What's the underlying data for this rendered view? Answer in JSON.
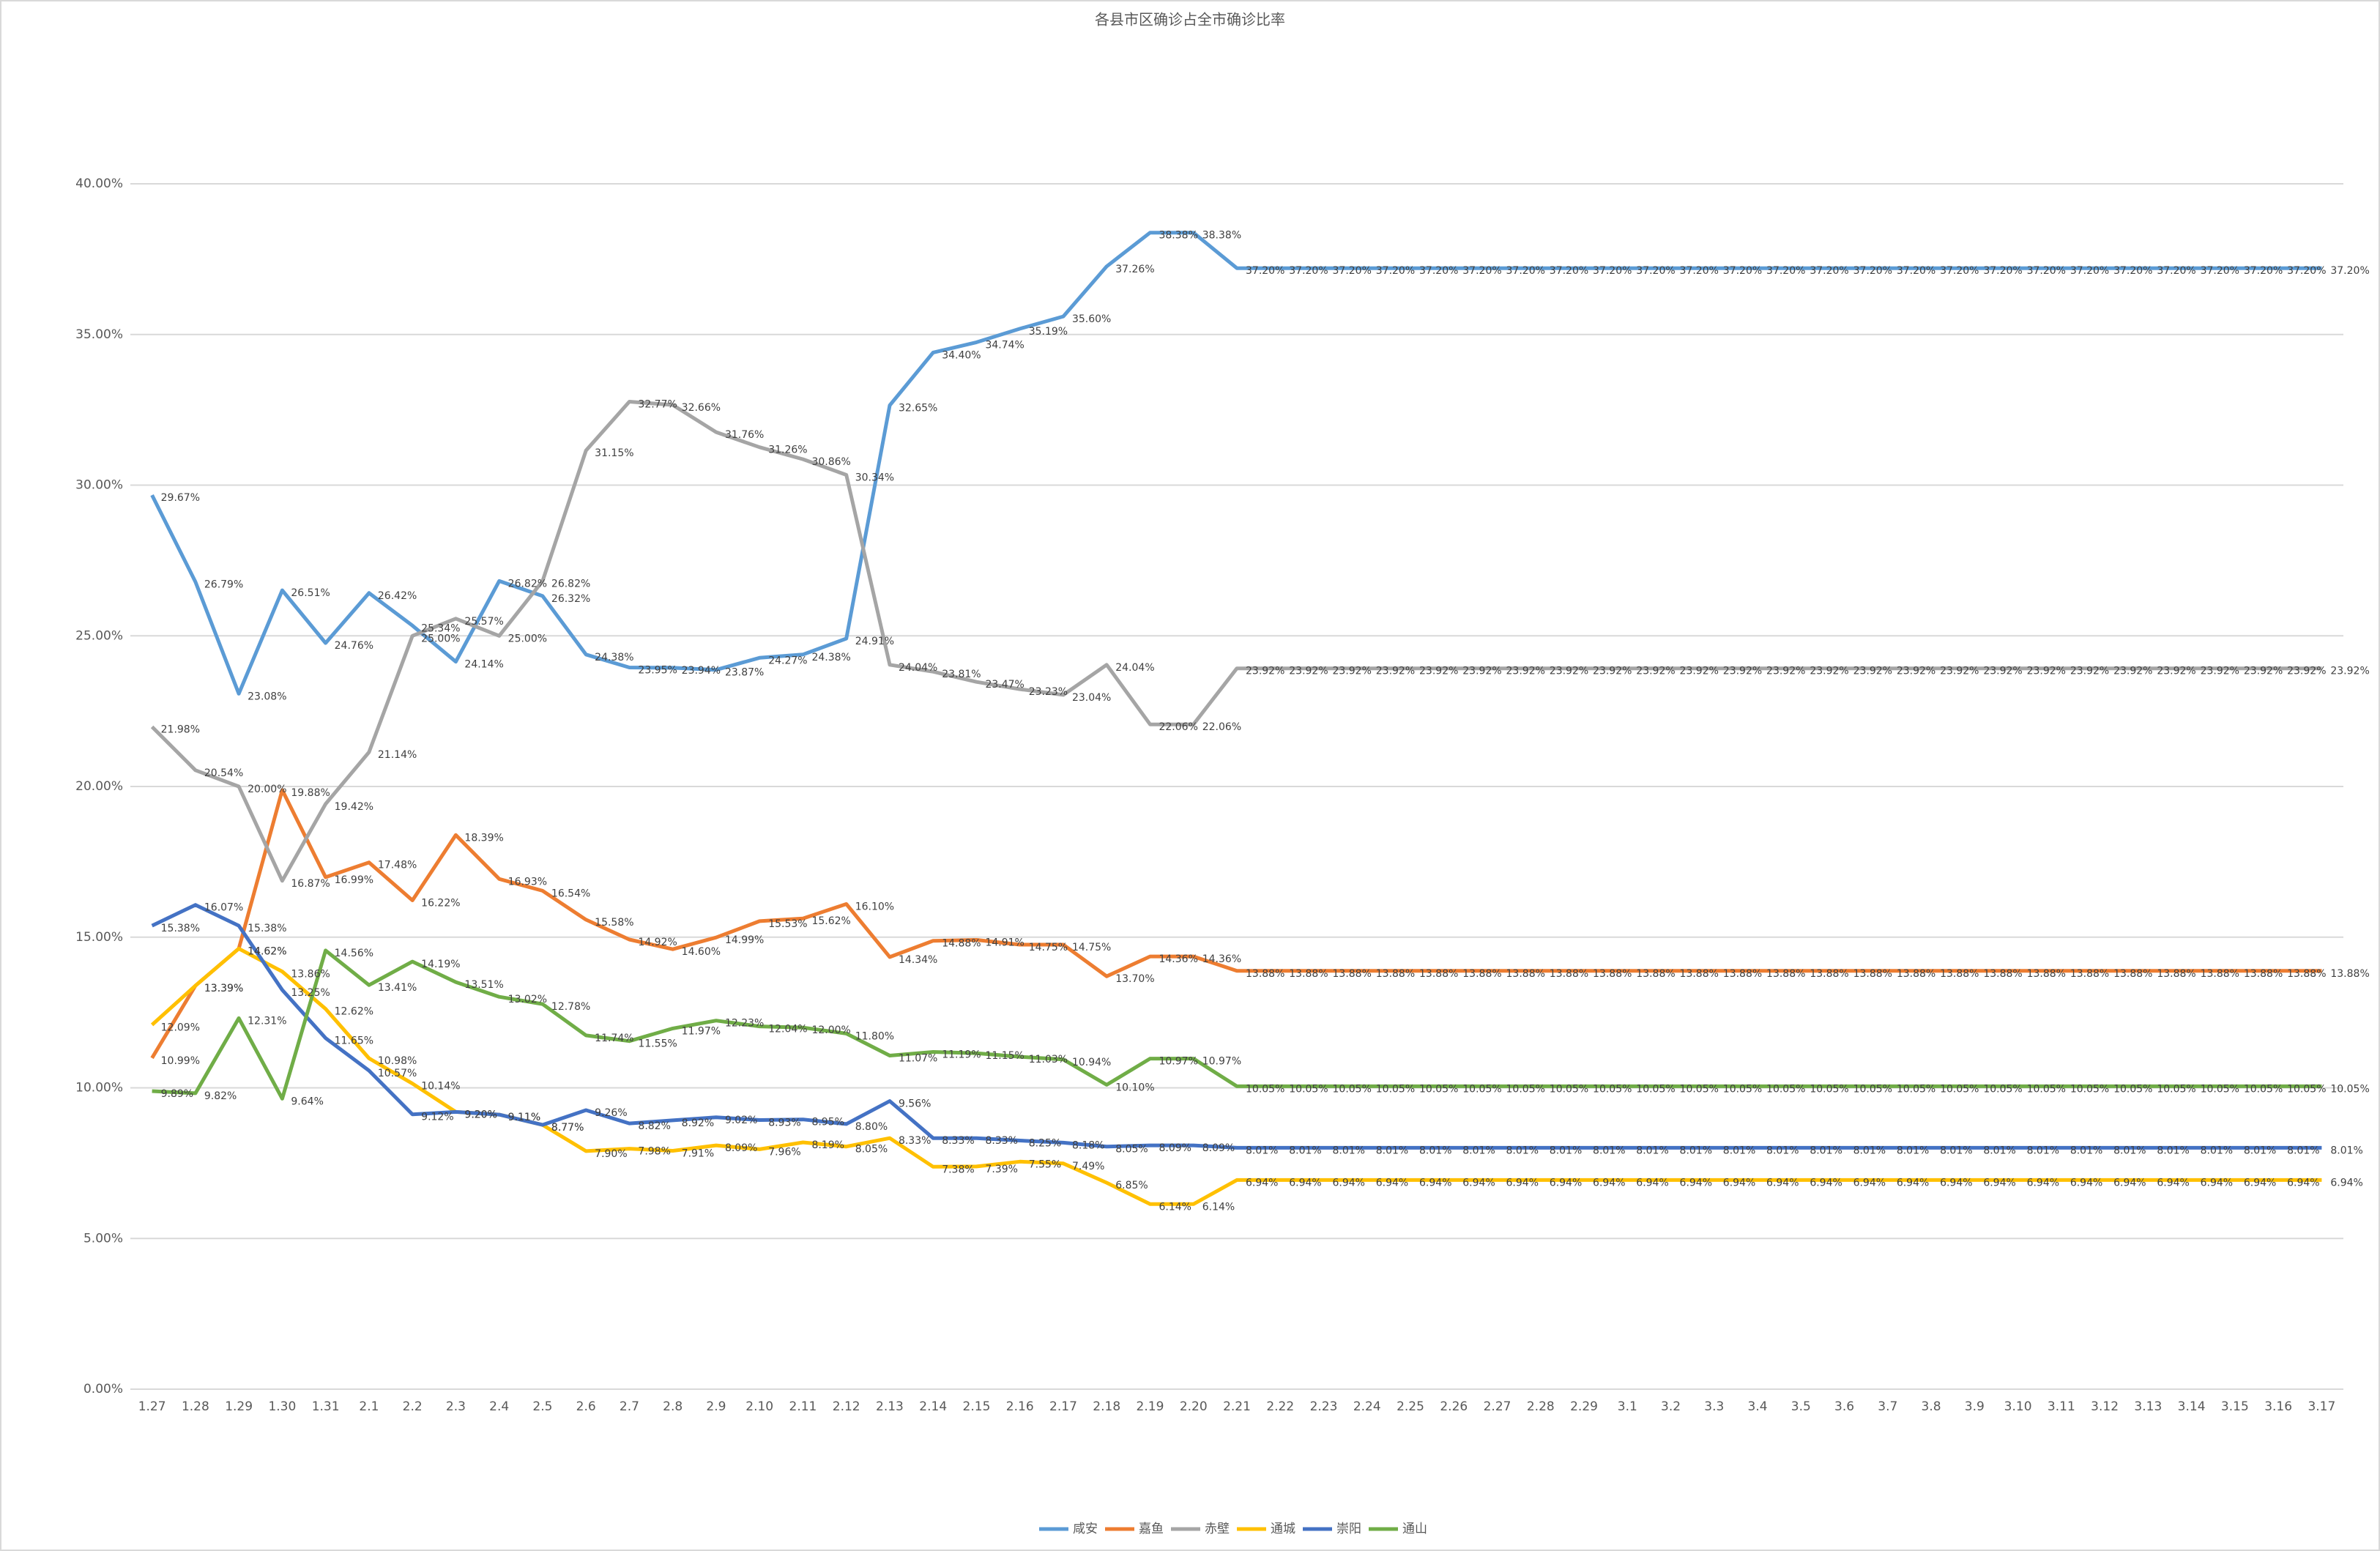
{
  "chart_data": {
    "type": "line",
    "title": "各县市区确诊占全市确诊比率",
    "categories": [
      "1.27",
      "1.28",
      "1.29",
      "1.30",
      "1.31",
      "2.1",
      "2.2",
      "2.3",
      "2.4",
      "2.5",
      "2.6",
      "2.7",
      "2.8",
      "2.9",
      "2.10",
      "2.11",
      "2.12",
      "2.13",
      "2.14",
      "2.15",
      "2.16",
      "2.17",
      "2.18",
      "2.19",
      "2.20",
      "2.21",
      "2.22",
      "2.23",
      "2.24",
      "2.25",
      "2.26",
      "2.27",
      "2.28",
      "2.29",
      "3.1",
      "3.2",
      "3.3",
      "3.4",
      "3.5",
      "3.6",
      "3.7",
      "3.8",
      "3.9",
      "3.10",
      "3.11",
      "3.12",
      "3.13",
      "3.14",
      "3.15",
      "3.16",
      "3.17"
    ],
    "ylim": [
      0,
      40
    ],
    "yticks": [
      {
        "value": 0,
        "label": "0.00%"
      },
      {
        "value": 5,
        "label": "5.00%"
      },
      {
        "value": 10,
        "label": "10.00%"
      },
      {
        "value": 15,
        "label": "15.00%"
      },
      {
        "value": 20,
        "label": "20.00%"
      },
      {
        "value": 25,
        "label": "25.00%"
      },
      {
        "value": 30,
        "label": "30.00%"
      },
      {
        "value": 35,
        "label": "35.00%"
      },
      {
        "value": 40,
        "label": "40.00%"
      }
    ],
    "grid": true,
    "legend": "bottom",
    "series": [
      {
        "name": "咸安",
        "color": "#5b9bd5",
        "values": [
          29.67,
          26.79,
          23.08,
          26.51,
          24.76,
          26.42,
          25.34,
          24.14,
          26.82,
          26.32,
          24.38,
          23.95,
          23.94,
          23.87,
          24.27,
          24.38,
          24.91,
          32.65,
          34.4,
          34.74,
          35.19,
          35.6,
          37.26,
          38.38,
          38.38,
          37.2,
          37.2,
          37.2,
          37.2,
          37.2,
          37.2,
          37.2,
          37.2,
          37.2,
          37.2,
          37.2,
          37.2,
          37.2,
          37.2,
          37.2,
          37.2,
          37.2,
          37.2,
          37.2,
          37.2,
          37.2,
          37.2,
          37.2,
          37.2,
          37.2,
          37.2
        ],
        "value_labels": [
          "29.67%",
          "26.79%",
          "23.08%",
          "26.51%",
          "24.76%",
          "26.42%",
          "25.34%",
          "24.14%",
          "26.82%",
          "26.32%",
          "24.38%",
          "23.95%",
          "23.94%",
          "23.87%",
          "24.27%",
          "24.38%",
          "24.91%",
          "32.65%",
          "34.40%",
          "34.74%",
          "35.19%",
          "35.60%",
          "37.26%",
          "38.38%",
          "38.38%",
          "37.20%",
          "37.20%",
          "37.20%",
          "37.20%",
          "37.20%",
          "37.20%",
          "37.20%",
          "37.20%",
          "37.20%",
          "37.20%",
          "37.20%",
          "37.20%",
          "37.20%",
          "37.20%",
          "37.20%",
          "37.20%",
          "37.20%",
          "37.20%",
          "37.20%",
          "37.20%",
          "37.20%",
          "37.20%",
          "37.20%",
          "37.20%",
          "37.20%",
          "37.20%"
        ]
      },
      {
        "name": "嘉鱼",
        "color": "#ed7d31",
        "values": [
          10.99,
          13.39,
          14.62,
          19.88,
          16.99,
          17.48,
          16.22,
          18.39,
          16.93,
          16.54,
          15.58,
          14.92,
          14.6,
          14.99,
          15.53,
          15.62,
          16.1,
          14.34,
          14.88,
          14.91,
          14.75,
          14.75,
          13.7,
          14.36,
          14.36,
          13.88,
          13.88,
          13.88,
          13.88,
          13.88,
          13.88,
          13.88,
          13.88,
          13.88,
          13.88,
          13.88,
          13.88,
          13.88,
          13.88,
          13.88,
          13.88,
          13.88,
          13.88,
          13.88,
          13.88,
          13.88,
          13.88,
          13.88,
          13.88,
          13.88,
          13.88
        ],
        "value_labels": [
          "10.99%",
          "13.39%",
          "14.62%",
          "19.88%",
          "16.99%",
          "17.48%",
          "16.22%",
          "18.39%",
          "16.93%",
          "16.54%",
          "15.58%",
          "14.92%",
          "14.60%",
          "14.99%",
          "15.53%",
          "15.62%",
          "16.10%",
          "14.34%",
          "14.88%",
          "14.91%",
          "14.75%",
          "14.75%",
          "13.70%",
          "14.36%",
          "14.36%",
          "13.88%",
          "13.88%",
          "13.88%",
          "13.88%",
          "13.88%",
          "13.88%",
          "13.88%",
          "13.88%",
          "13.88%",
          "13.88%",
          "13.88%",
          "13.88%",
          "13.88%",
          "13.88%",
          "13.88%",
          "13.88%",
          "13.88%",
          "13.88%",
          "13.88%",
          "13.88%",
          "13.88%",
          "13.88%",
          "13.88%",
          "13.88%",
          "13.88%",
          "13.88%"
        ]
      },
      {
        "name": "赤壁",
        "color": "#a5a5a5",
        "values": [
          21.98,
          20.54,
          20,
          16.87,
          19.42,
          21.14,
          25,
          25.57,
          25,
          26.82,
          31.15,
          32.77,
          32.66,
          31.76,
          31.26,
          30.86,
          30.34,
          24.04,
          23.81,
          23.47,
          23.23,
          23.04,
          24.04,
          22.06,
          22.06,
          23.92,
          23.92,
          23.92,
          23.92,
          23.92,
          23.92,
          23.92,
          23.92,
          23.92,
          23.92,
          23.92,
          23.92,
          23.92,
          23.92,
          23.92,
          23.92,
          23.92,
          23.92,
          23.92,
          23.92,
          23.92,
          23.92,
          23.92,
          23.92,
          23.92,
          23.92
        ],
        "value_labels": [
          "21.98%",
          "20.54%",
          "20.00%",
          "16.87%",
          "19.42%",
          "21.14%",
          "25.00%",
          "25.57%",
          "25.00%",
          "26.82%",
          "31.15%",
          "32.77%",
          "32.66%",
          "31.76%",
          "31.26%",
          "30.86%",
          "30.34%",
          "24.04%",
          "23.81%",
          "23.47%",
          "23.23%",
          "23.04%",
          "24.04%",
          "22.06%",
          "22.06%",
          "23.92%",
          "23.92%",
          "23.92%",
          "23.92%",
          "23.92%",
          "23.92%",
          "23.92%",
          "23.92%",
          "23.92%",
          "23.92%",
          "23.92%",
          "23.92%",
          "23.92%",
          "23.92%",
          "23.92%",
          "23.92%",
          "23.92%",
          "23.92%",
          "23.92%",
          "23.92%",
          "23.92%",
          "23.92%",
          "23.92%",
          "23.92%",
          "23.92%",
          "23.92%"
        ]
      },
      {
        "name": "通城",
        "color": "#ffc000",
        "values": [
          12.09,
          13.39,
          14.62,
          13.86,
          12.62,
          10.98,
          10.14,
          9.2,
          9.11,
          8.77,
          7.9,
          7.98,
          7.91,
          8.09,
          7.96,
          8.19,
          8.05,
          8.33,
          7.38,
          7.39,
          7.55,
          7.49,
          6.85,
          6.14,
          6.14,
          6.94,
          6.94,
          6.94,
          6.94,
          6.94,
          6.94,
          6.94,
          6.94,
          6.94,
          6.94,
          6.94,
          6.94,
          6.94,
          6.94,
          6.94,
          6.94,
          6.94,
          6.94,
          6.94,
          6.94,
          6.94,
          6.94,
          6.94,
          6.94,
          6.94,
          6.94
        ],
        "value_labels": [
          "12.09%",
          "13.39%",
          "14.62%",
          "13.86%",
          "12.62%",
          "10.98%",
          "10.14%",
          "9.20%",
          "9.11%",
          "8.77%",
          "7.90%",
          "7.98%",
          "7.91%",
          "8.09%",
          "7.96%",
          "8.19%",
          "8.05%",
          "8.33%",
          "7.38%",
          "7.39%",
          "7.55%",
          "7.49%",
          "6.85%",
          "6.14%",
          "6.14%",
          "6.94%",
          "6.94%",
          "6.94%",
          "6.94%",
          "6.94%",
          "6.94%",
          "6.94%",
          "6.94%",
          "6.94%",
          "6.94%",
          "6.94%",
          "6.94%",
          "6.94%",
          "6.94%",
          "6.94%",
          "6.94%",
          "6.94%",
          "6.94%",
          "6.94%",
          "6.94%",
          "6.94%",
          "6.94%",
          "6.94%",
          "6.94%",
          "6.94%",
          "6.94%"
        ]
      },
      {
        "name": "崇阳",
        "color": "#4472c4",
        "values": [
          15.38,
          16.07,
          15.38,
          13.25,
          11.65,
          10.57,
          9.12,
          9.2,
          9.11,
          8.77,
          9.26,
          8.82,
          8.92,
          9.02,
          8.93,
          8.95,
          8.8,
          9.56,
          8.33,
          8.33,
          8.25,
          8.18,
          8.05,
          8.09,
          8.09,
          8.01,
          8.01,
          8.01,
          8.01,
          8.01,
          8.01,
          8.01,
          8.01,
          8.01,
          8.01,
          8.01,
          8.01,
          8.01,
          8.01,
          8.01,
          8.01,
          8.01,
          8.01,
          8.01,
          8.01,
          8.01,
          8.01,
          8.01,
          8.01,
          8.01,
          8.01
        ],
        "value_labels": [
          "15.38%",
          "16.07%",
          "15.38%",
          "13.25%",
          "11.65%",
          "10.57%",
          "9.12%",
          "9.20%",
          "9.11%",
          "8.77%",
          "9.26%",
          "8.82%",
          "8.92%",
          "9.02%",
          "8.93%",
          "8.95%",
          "8.80%",
          "9.56%",
          "8.33%",
          "8.33%",
          "8.25%",
          "8.18%",
          "8.05%",
          "8.09%",
          "8.09%",
          "8.01%",
          "8.01%",
          "8.01%",
          "8.01%",
          "8.01%",
          "8.01%",
          "8.01%",
          "8.01%",
          "8.01%",
          "8.01%",
          "8.01%",
          "8.01%",
          "8.01%",
          "8.01%",
          "8.01%",
          "8.01%",
          "8.01%",
          "8.01%",
          "8.01%",
          "8.01%",
          "8.01%",
          "8.01%",
          "8.01%",
          "8.01%",
          "8.01%",
          "8.01%"
        ]
      },
      {
        "name": "通山",
        "color": "#70ad47",
        "values": [
          9.89,
          9.82,
          12.31,
          9.64,
          14.56,
          13.41,
          14.19,
          13.51,
          13.02,
          12.78,
          11.74,
          11.55,
          11.97,
          12.23,
          12.04,
          12,
          11.8,
          11.07,
          11.19,
          11.15,
          11.03,
          10.94,
          10.1,
          10.97,
          10.97,
          10.05,
          10.05,
          10.05,
          10.05,
          10.05,
          10.05,
          10.05,
          10.05,
          10.05,
          10.05,
          10.05,
          10.05,
          10.05,
          10.05,
          10.05,
          10.05,
          10.05,
          10.05,
          10.05,
          10.05,
          10.05,
          10.05,
          10.05,
          10.05,
          10.05,
          10.05
        ],
        "value_labels": [
          "9.89%",
          "9.82%",
          "12.31%",
          "9.64%",
          "14.56%",
          "13.41%",
          "14.19%",
          "13.51%",
          "13.02%",
          "12.78%",
          "11.74%",
          "11.55%",
          "11.97%",
          "12.23%",
          "12.04%",
          "12.00%",
          "11.80%",
          "11.07%",
          "11.19%",
          "11.15%",
          "11.03%",
          "10.94%",
          "10.10%",
          "10.97%",
          "10.97%",
          "10.05%",
          "10.05%",
          "10.05%",
          "10.05%",
          "10.05%",
          "10.05%",
          "10.05%",
          "10.05%",
          "10.05%",
          "10.05%",
          "10.05%",
          "10.05%",
          "10.05%",
          "10.05%",
          "10.05%",
          "10.05%",
          "10.05%",
          "10.05%",
          "10.05%",
          "10.05%",
          "10.05%",
          "10.05%",
          "10.05%",
          "10.05%",
          "10.05%",
          "10.05%"
        ]
      }
    ]
  }
}
